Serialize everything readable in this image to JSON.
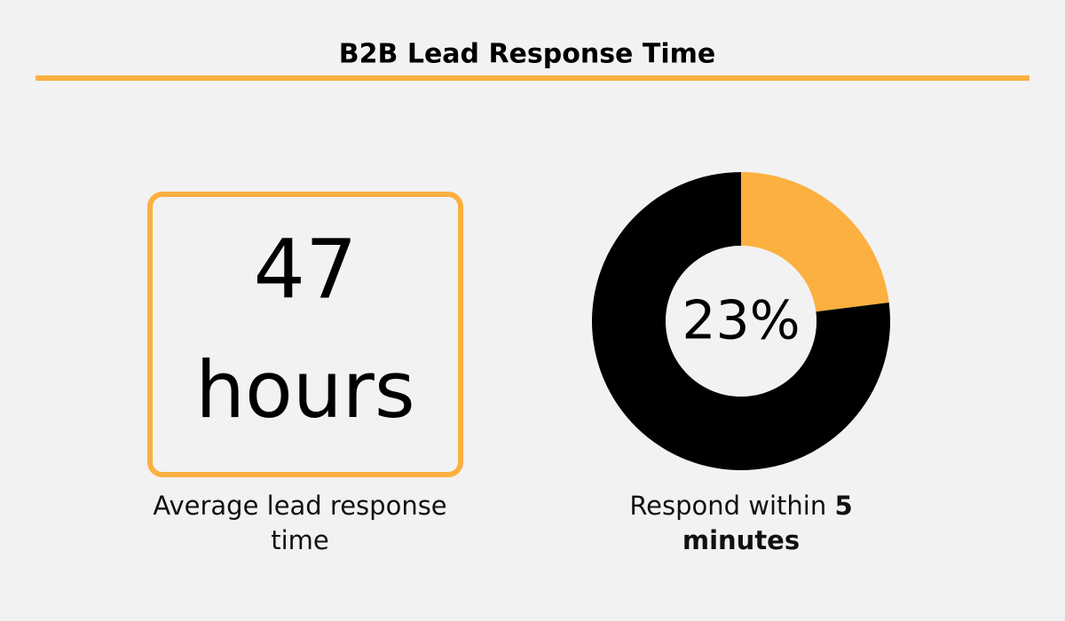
{
  "title": "B2B Lead Response Time",
  "stat": {
    "number": "47",
    "unit": "hours",
    "caption": "Average lead response time"
  },
  "chart_data": {
    "type": "pie",
    "values": [
      23,
      77
    ],
    "value_labels": [
      "23%",
      null
    ],
    "colors": [
      "#fbb040",
      "#000000"
    ],
    "caption": {
      "text": "Respond within",
      "emphasis": "5 minutes"
    }
  }
}
